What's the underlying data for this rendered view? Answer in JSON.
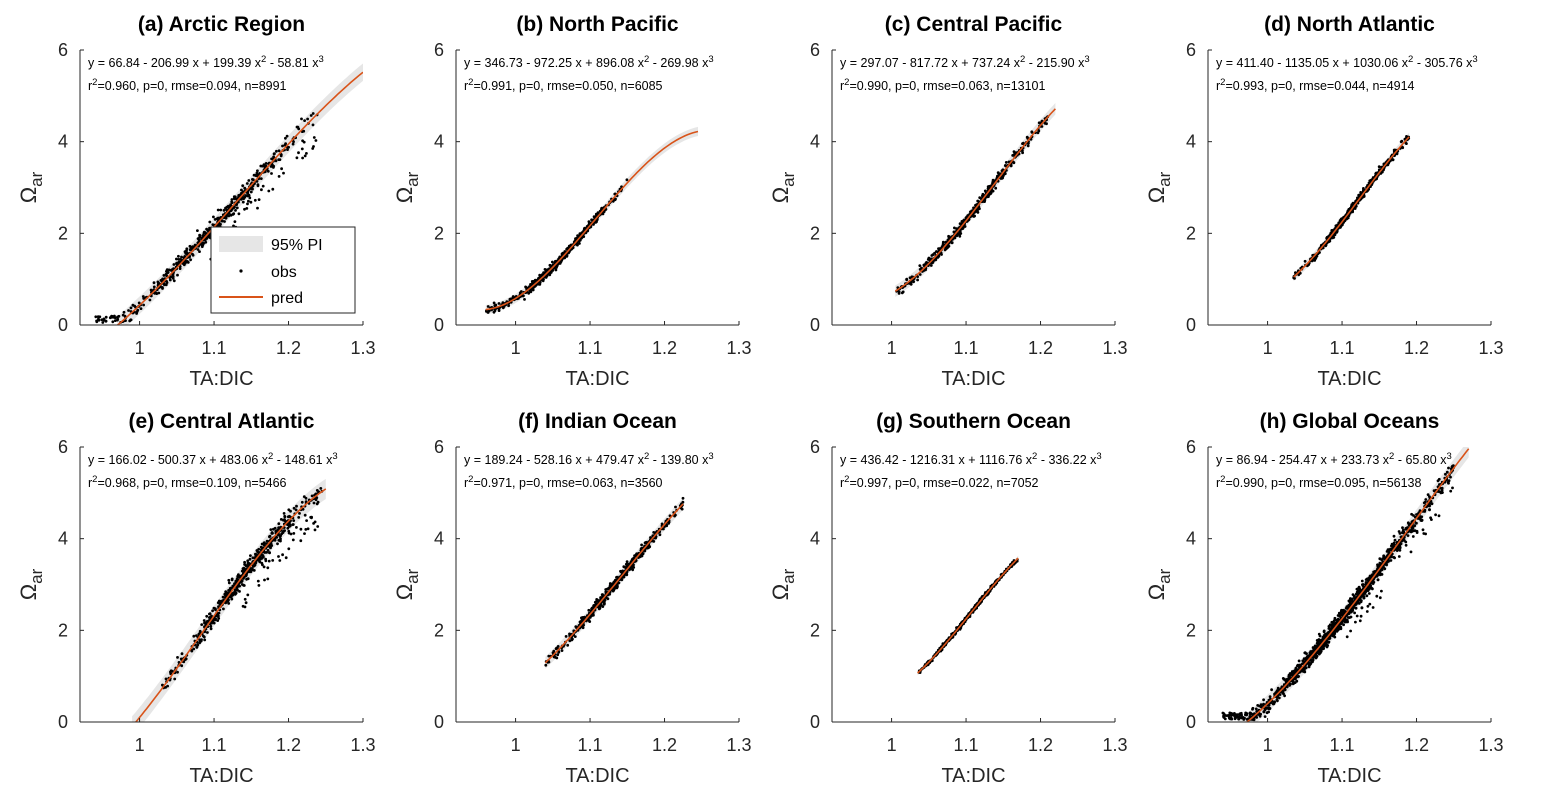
{
  "figure": {
    "colors": {
      "prediction_line": "#d95319",
      "interval_band": "#e6e6e6",
      "observations": "#000000",
      "axes": "#262626"
    },
    "legend": {
      "placement": "panel-a-bottom-right",
      "entries": [
        "95% PI",
        "obs",
        "pred"
      ]
    }
  },
  "chart_data": [
    {
      "type": "scatter",
      "title": "(a) Arctic Region",
      "xlabel": "TA:DIC",
      "ylabel": "Ωar",
      "xlim": [
        0.92,
        1.3
      ],
      "ylim": [
        0,
        6
      ],
      "xticks": [
        "1",
        "1.1",
        "1.2",
        "1.3"
      ],
      "yticks": [
        "0",
        "2",
        "4",
        "6"
      ],
      "equation": "y = 66.84 - 206.99 x + 199.39 x² - 58.81 x³",
      "stats": "r²=0.960, p=0, rmse=0.094, n=8991",
      "coefficients": [
        66.84,
        -206.99,
        199.39,
        -58.81
      ],
      "x_range": [
        0.94,
        1.24
      ],
      "fit_range": [
        0.97,
        1.3
      ],
      "band_halfwidth": 0.19,
      "series": [
        {
          "name": "95% PI"
        },
        {
          "name": "obs"
        },
        {
          "name": "pred"
        }
      ]
    },
    {
      "type": "scatter",
      "title": "(b) North Pacific",
      "xlabel": "TA:DIC",
      "ylabel": "Ωar",
      "xlim": [
        0.92,
        1.3
      ],
      "ylim": [
        0,
        6
      ],
      "xticks": [
        "1",
        "1.1",
        "1.2",
        "1.3"
      ],
      "yticks": [
        "0",
        "2",
        "4",
        "6"
      ],
      "equation": "y = 346.73 - 972.25 x + 896.08 x² - 269.98 x³",
      "stats": "r²=0.991, p=0, rmse=0.050, n=6085",
      "coefficients": [
        346.73,
        -972.25,
        896.08,
        -269.98
      ],
      "x_range": [
        0.96,
        1.15
      ],
      "fit_range": [
        0.96,
        1.245
      ],
      "band_halfwidth": 0.1,
      "series": [
        {
          "name": "95% PI"
        },
        {
          "name": "obs"
        },
        {
          "name": "pred"
        }
      ]
    },
    {
      "type": "scatter",
      "title": "(c) Central Pacific",
      "xlabel": "TA:DIC",
      "ylabel": "Ωar",
      "xlim": [
        0.92,
        1.3
      ],
      "ylim": [
        0,
        6
      ],
      "xticks": [
        "1",
        "1.1",
        "1.2",
        "1.3"
      ],
      "yticks": [
        "0",
        "2",
        "4",
        "6"
      ],
      "equation": "y = 297.07 - 817.72 x + 737.24 x² - 215.90 x³",
      "stats": "r²=0.990, p=0, rmse=0.063, n=13101",
      "coefficients": [
        297.07,
        -817.72,
        737.24,
        -215.9
      ],
      "x_range": [
        1.005,
        1.21
      ],
      "fit_range": [
        1.005,
        1.22
      ],
      "band_halfwidth": 0.125,
      "series": [
        {
          "name": "95% PI"
        },
        {
          "name": "obs"
        },
        {
          "name": "pred"
        }
      ]
    },
    {
      "type": "scatter",
      "title": "(d) North Atlantic",
      "xlabel": "TA:DIC",
      "ylabel": "Ωar",
      "xlim": [
        0.92,
        1.3
      ],
      "ylim": [
        0,
        6
      ],
      "xticks": [
        "1",
        "1.1",
        "1.2",
        "1.3"
      ],
      "yticks": [
        "0",
        "2",
        "4",
        "6"
      ],
      "equation": "y = 411.40 - 1135.05 x + 1030.06 x² - 305.76 x³",
      "stats": "r²=0.993, p=0, rmse=0.044, n=4914",
      "coefficients": [
        411.4,
        -1135.05,
        1030.06,
        -305.76
      ],
      "x_range": [
        1.035,
        1.19
      ],
      "fit_range": [
        1.035,
        1.19
      ],
      "band_halfwidth": 0.09,
      "series": [
        {
          "name": "95% PI"
        },
        {
          "name": "obs"
        },
        {
          "name": "pred"
        }
      ]
    },
    {
      "type": "scatter",
      "title": "(e) Central Atlantic",
      "xlabel": "TA:DIC",
      "ylabel": "Ωar",
      "xlim": [
        0.92,
        1.3
      ],
      "ylim": [
        0,
        6
      ],
      "xticks": [
        "1",
        "1.1",
        "1.2",
        "1.3"
      ],
      "yticks": [
        "0",
        "2",
        "4",
        "6"
      ],
      "equation": "y = 166.02 - 500.37 x + 483.06 x² - 148.61 x³",
      "stats": "r²=0.968, p=0, rmse=0.109, n=5466",
      "coefficients": [
        166.02,
        -500.37,
        483.06,
        -148.61
      ],
      "x_range": [
        1.03,
        1.245
      ],
      "fit_range": [
        0.99,
        1.25
      ],
      "band_halfwidth": 0.22,
      "series": [
        {
          "name": "95% PI"
        },
        {
          "name": "obs"
        },
        {
          "name": "pred"
        }
      ]
    },
    {
      "type": "scatter",
      "title": "(f) Indian Ocean",
      "xlabel": "TA:DIC",
      "ylabel": "Ωar",
      "xlim": [
        0.92,
        1.3
      ],
      "ylim": [
        0,
        6
      ],
      "xticks": [
        "1",
        "1.1",
        "1.2",
        "1.3"
      ],
      "yticks": [
        "0",
        "2",
        "4",
        "6"
      ],
      "equation": "y = 189.24 - 528.16 x + 479.47 x² - 139.80 x³",
      "stats": "r²=0.971, p=0, rmse=0.063, n=3560",
      "coefficients": [
        189.24,
        -528.16,
        479.47,
        -139.8
      ],
      "x_range": [
        1.04,
        1.225
      ],
      "fit_range": [
        1.04,
        1.225
      ],
      "band_halfwidth": 0.13,
      "series": [
        {
          "name": "95% PI"
        },
        {
          "name": "obs"
        },
        {
          "name": "pred"
        }
      ]
    },
    {
      "type": "scatter",
      "title": "(g) Southern Ocean",
      "xlabel": "TA:DIC",
      "ylabel": "Ωar",
      "xlim": [
        0.92,
        1.3
      ],
      "ylim": [
        0,
        6
      ],
      "xticks": [
        "1",
        "1.1",
        "1.2",
        "1.3"
      ],
      "yticks": [
        "0",
        "2",
        "4",
        "6"
      ],
      "equation": "y = 436.42 - 1216.31 x + 1116.76 x² - 336.22 x³",
      "stats": "r²=0.997, p=0, rmse=0.022, n=7052",
      "coefficients": [
        436.42,
        -1216.31,
        1116.76,
        -336.22
      ],
      "x_range": [
        1.035,
        1.17
      ],
      "fit_range": [
        1.035,
        1.17
      ],
      "band_halfwidth": 0.05,
      "series": [
        {
          "name": "95% PI"
        },
        {
          "name": "obs"
        },
        {
          "name": "pred"
        }
      ]
    },
    {
      "type": "scatter",
      "title": "(h) Global Oceans",
      "xlabel": "TA:DIC",
      "ylabel": "Ωar",
      "xlim": [
        0.92,
        1.3
      ],
      "ylim": [
        0,
        6
      ],
      "xticks": [
        "1",
        "1.1",
        "1.2",
        "1.3"
      ],
      "yticks": [
        "0",
        "2",
        "4",
        "6"
      ],
      "equation": "y = 86.94 - 254.47 x + 233.73 x² - 65.80 x³",
      "stats": "r²=0.990, p=0, rmse=0.095, n=56138",
      "coefficients": [
        86.94,
        -254.47,
        233.73,
        -65.8
      ],
      "x_range": [
        0.94,
        1.25
      ],
      "fit_range": [
        0.96,
        1.27
      ],
      "band_halfwidth": 0.19,
      "series": [
        {
          "name": "95% PI"
        },
        {
          "name": "obs"
        },
        {
          "name": "pred"
        }
      ]
    }
  ]
}
